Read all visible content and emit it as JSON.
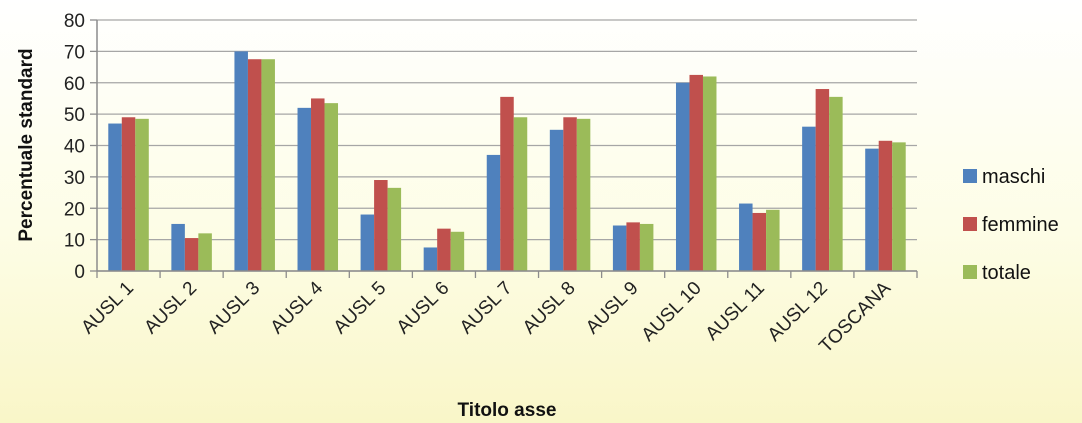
{
  "chart_data": {
    "type": "bar",
    "categories": [
      "AUSL 1",
      "AUSL 2",
      "AUSL 3",
      "AUSL 4",
      "AUSL 5",
      "AUSL 6",
      "AUSL 7",
      "AUSL 8",
      "AUSL 9",
      "AUSL 10",
      "AUSL 11",
      "AUSL 12",
      "TOSCANA"
    ],
    "series": [
      {
        "name": "maschi",
        "color": "#4f81bd",
        "values": [
          47,
          15,
          70,
          52,
          18,
          7.5,
          37,
          45,
          14.5,
          60,
          21.5,
          46,
          39
        ]
      },
      {
        "name": "femmine",
        "color": "#c0504d",
        "values": [
          49,
          10.5,
          67.5,
          55,
          29,
          13.5,
          55.5,
          49,
          15.5,
          62.5,
          18.5,
          58,
          41.5
        ]
      },
      {
        "name": "totale",
        "color": "#9bbb59",
        "values": [
          48.5,
          12,
          67.5,
          53.5,
          26.5,
          12.5,
          49,
          48.5,
          15,
          62,
          19.5,
          55.5,
          41
        ]
      }
    ],
    "title": "",
    "xlabel": "Titolo asse",
    "ylabel": "Percentuale standard",
    "ylim": [
      0,
      80
    ],
    "yticks": [
      "0",
      "10",
      "20",
      "30",
      "40",
      "50",
      "60",
      "70",
      "80"
    ],
    "grid": true,
    "legend_position": "right"
  }
}
